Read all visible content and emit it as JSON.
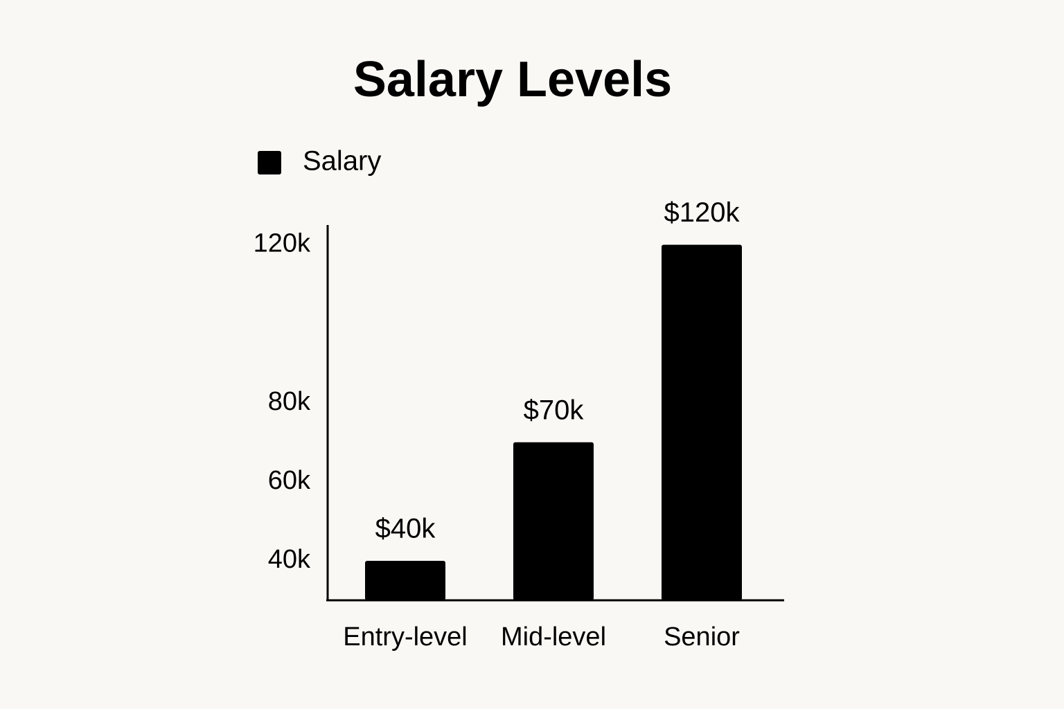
{
  "chart_data": {
    "type": "bar",
    "title": "Salary Levels",
    "categories": [
      "Entry-level",
      "Mid-level",
      "Senior"
    ],
    "series": [
      {
        "name": "Salary",
        "color": "#000000",
        "values": [
          40000,
          70000,
          120000
        ],
        "value_labels": [
          "$40k",
          "$70k",
          "$120k"
        ]
      }
    ],
    "ylim": [
      30000,
      125000
    ],
    "yticks": [
      {
        "value": 40000,
        "label": "40k"
      },
      {
        "value": 60000,
        "label": "60k"
      },
      {
        "value": 80000,
        "label": "80k"
      },
      {
        "value": 120000,
        "label": "120k"
      }
    ],
    "grid": false,
    "legend": "top-left"
  }
}
